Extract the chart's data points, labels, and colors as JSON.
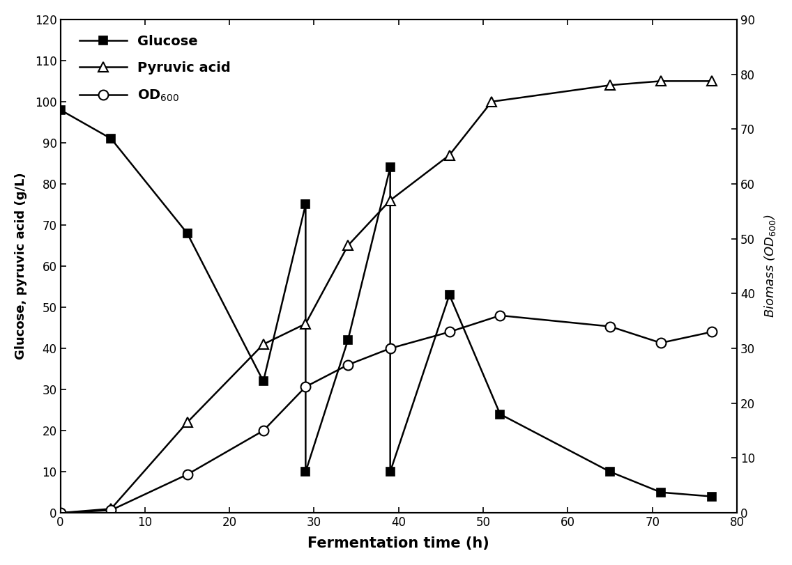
{
  "glucose_x": [
    0,
    6,
    15,
    24,
    29,
    29,
    34,
    39,
    39,
    46,
    52,
    65,
    71,
    77
  ],
  "glucose_y": [
    98,
    91,
    68,
    32,
    75,
    10,
    42,
    84,
    10,
    53,
    24,
    10,
    5,
    4
  ],
  "pyruvic_x": [
    0,
    6,
    15,
    24,
    29,
    34,
    39,
    46,
    51,
    65,
    71,
    77
  ],
  "pyruvic_y": [
    0,
    1,
    22,
    41,
    46,
    65,
    76,
    87,
    100,
    104,
    105,
    105
  ],
  "od_x": [
    0,
    6,
    15,
    24,
    29,
    34,
    39,
    46,
    52,
    65,
    71,
    77
  ],
  "od_y": [
    0,
    0.5,
    7,
    15,
    23,
    27,
    30,
    33,
    36,
    34,
    31,
    33
  ],
  "glucose_label": "Glucose",
  "pyruvic_label": "Pyruvic acid",
  "od_label": "OD$_{600}$",
  "xlabel": "Fermentation time (h)",
  "ylabel_left": "Glucose, pyruvic acid (g/L)",
  "ylabel_right": "Biomass ($\\mathit{OD}_{600}$)",
  "xlim": [
    0,
    80
  ],
  "ylim_left": [
    0,
    120
  ],
  "ylim_right": [
    0,
    90
  ],
  "xticks": [
    0,
    10,
    20,
    30,
    40,
    50,
    60,
    70,
    80
  ],
  "yticks_left": [
    0,
    10,
    20,
    30,
    40,
    50,
    60,
    70,
    80,
    90,
    100,
    110,
    120
  ],
  "yticks_right": [
    0,
    10,
    20,
    30,
    40,
    50,
    60,
    70,
    80,
    90
  ],
  "line_color": "#000000",
  "bg_color": "#ffffff",
  "legend_labels": [
    "Glucose",
    "Pyruvic acid",
    "OD$_{600}$"
  ]
}
